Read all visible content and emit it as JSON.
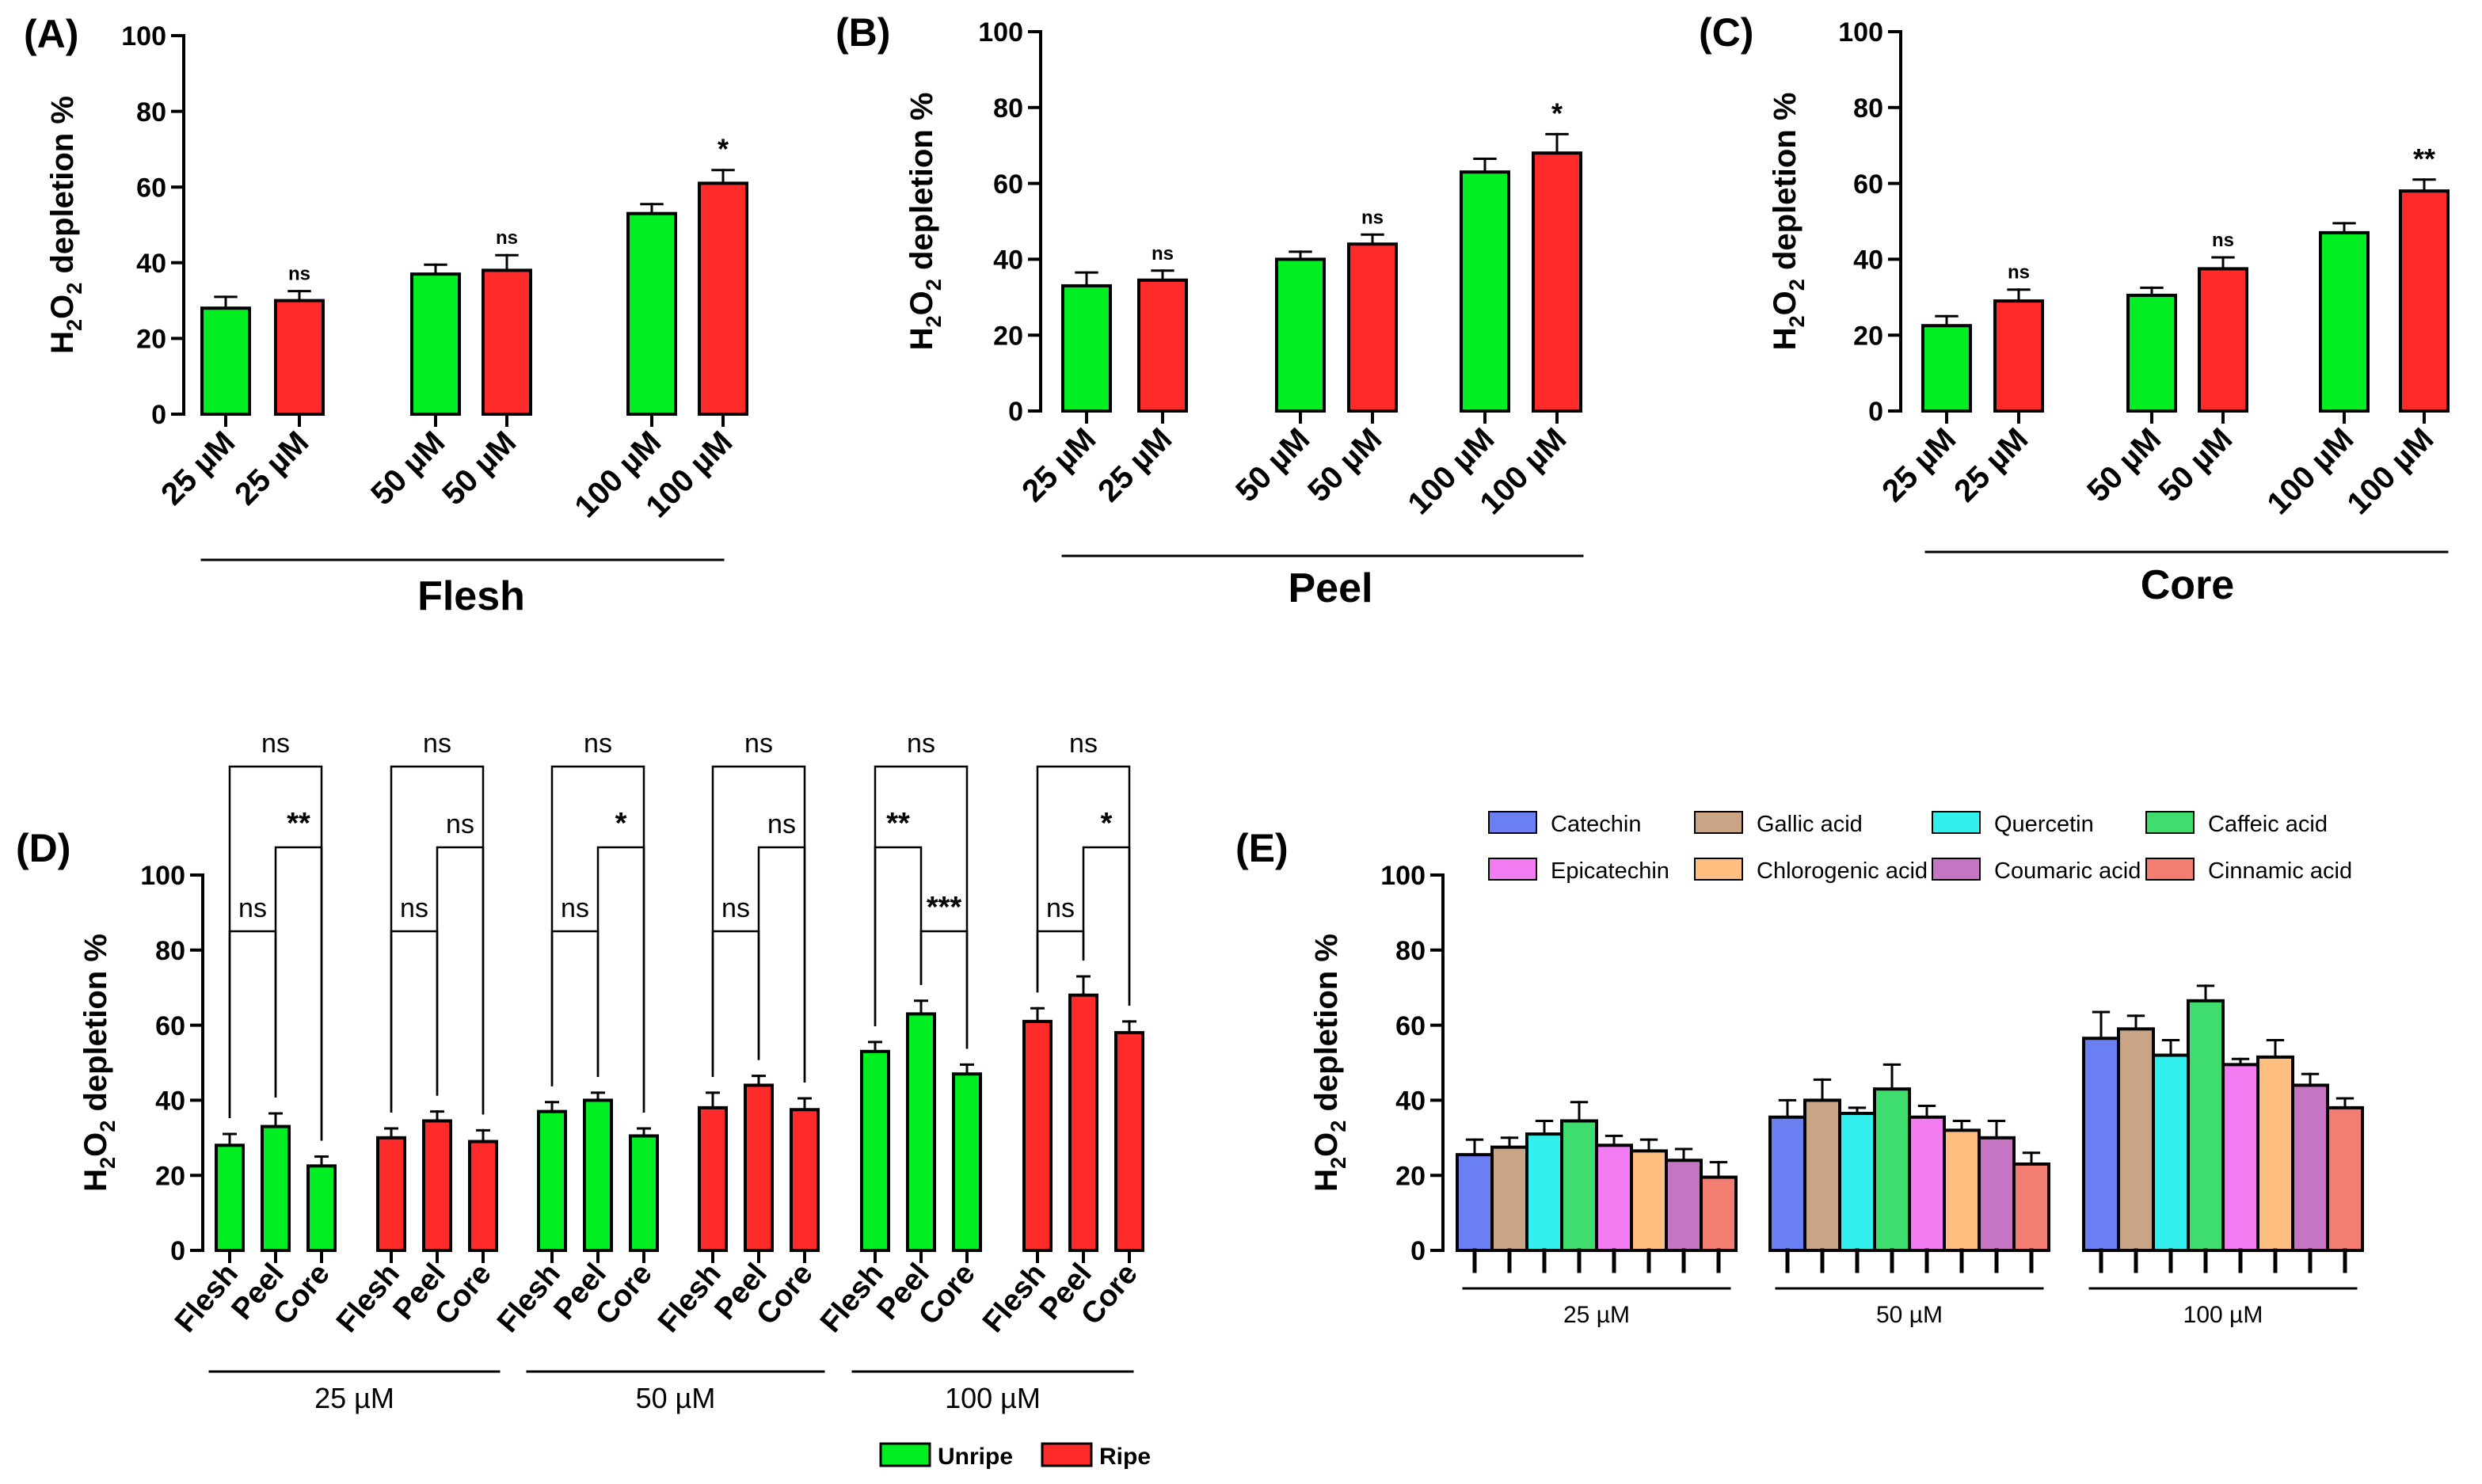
{
  "colors": {
    "unripe": "#00ee22",
    "ripe": "#ff2a2a",
    "outline": "#000000",
    "compounds": [
      "#6a7ff2",
      "#c9a586",
      "#33f0ee",
      "#3fdc6e",
      "#f27cf2",
      "#ffbf80",
      "#c674c4",
      "#f47d72"
    ]
  },
  "chart_data": [
    {
      "panel": "(A)",
      "type": "bar",
      "title": "",
      "group_label": "Flesh",
      "ylabel_parts": [
        "H",
        "2",
        "O",
        "2",
        " depletion %"
      ],
      "ylim": [
        0,
        100
      ],
      "yticks": [
        "0",
        "20",
        "40",
        "60",
        "80",
        "100"
      ],
      "categories": [
        "25 µM",
        "25 µM",
        "50 µM",
        "50 µM",
        "100 µM",
        "100 µM"
      ],
      "groups": [
        "unripe",
        "ripe",
        "unripe",
        "ripe",
        "unripe",
        "ripe"
      ],
      "values": [
        28,
        30,
        37,
        38,
        53,
        61
      ],
      "errors": [
        3,
        2.5,
        2.5,
        4,
        2.5,
        3.5
      ],
      "annotations": [
        "",
        "ns",
        "",
        "ns",
        "",
        "*"
      ]
    },
    {
      "panel": "(B)",
      "type": "bar",
      "title": "",
      "group_label": "Peel",
      "ylabel_parts": [
        "H",
        "2",
        "O",
        "2",
        " depletion %"
      ],
      "ylim": [
        0,
        100
      ],
      "yticks": [
        "0",
        "20",
        "40",
        "60",
        "80",
        "100"
      ],
      "categories": [
        "25 µM",
        "25 µM",
        "50 µM",
        "50 µM",
        "100 µM",
        "100 µM"
      ],
      "groups": [
        "unripe",
        "ripe",
        "unripe",
        "ripe",
        "unripe",
        "ripe"
      ],
      "values": [
        33,
        34.5,
        40,
        44,
        63,
        68
      ],
      "errors": [
        3.5,
        2.5,
        2,
        2.5,
        3.5,
        5
      ],
      "annotations": [
        "",
        "ns",
        "",
        "ns",
        "",
        "*"
      ]
    },
    {
      "panel": "(C)",
      "type": "bar",
      "title": "",
      "group_label": "Core",
      "ylabel_parts": [
        "H",
        "2",
        "O",
        "2",
        " depletion %"
      ],
      "ylim": [
        0,
        100
      ],
      "yticks": [
        "0",
        "20",
        "40",
        "60",
        "80",
        "100"
      ],
      "categories": [
        "25 µM",
        "25 µM",
        "50 µM",
        "50 µM",
        "100 µM",
        "100 µM"
      ],
      "groups": [
        "unripe",
        "ripe",
        "unripe",
        "ripe",
        "unripe",
        "ripe"
      ],
      "values": [
        22.5,
        29,
        30.5,
        37.5,
        47,
        58
      ],
      "errors": [
        2.5,
        3,
        2,
        3,
        2.5,
        3
      ],
      "annotations": [
        "",
        "ns",
        "",
        "ns",
        "",
        "**"
      ]
    },
    {
      "panel": "(D)",
      "type": "bar",
      "title": "",
      "ylabel_parts": [
        "H",
        "2",
        "O",
        "2",
        " depletion %"
      ],
      "ylim": [
        0,
        100
      ],
      "yticks": [
        "0",
        "20",
        "40",
        "60",
        "80",
        "100"
      ],
      "categories": [
        "Flesh",
        "Peel",
        "Core"
      ],
      "group_labels": [
        "25 µM",
        "50 µM",
        "100 µM"
      ],
      "legend": [
        {
          "key": "unripe",
          "label": "Unripe"
        },
        {
          "key": "ripe",
          "label": "Ripe"
        }
      ],
      "sets": [
        {
          "group": "25 µM",
          "ripeness": "unripe",
          "values": [
            28,
            33,
            22.5
          ],
          "errors": [
            3,
            3.5,
            2.5
          ],
          "brackets": {
            "outer": "ns",
            "upper": "**",
            "lower": "ns"
          }
        },
        {
          "group": "25 µM",
          "ripeness": "ripe",
          "values": [
            30,
            34.5,
            29
          ],
          "errors": [
            2.5,
            2.5,
            3
          ],
          "brackets": {
            "outer": "ns",
            "upper": "ns",
            "lower": "ns"
          }
        },
        {
          "group": "50 µM",
          "ripeness": "unripe",
          "values": [
            37,
            40,
            30.5
          ],
          "errors": [
            2.5,
            2,
            2
          ],
          "brackets": {
            "outer": "ns",
            "upper": "*",
            "lower": "ns"
          }
        },
        {
          "group": "50 µM",
          "ripeness": "ripe",
          "values": [
            38,
            44,
            37.5
          ],
          "errors": [
            4,
            2.5,
            3
          ],
          "brackets": {
            "outer": "ns",
            "upper": "ns",
            "lower": "ns"
          }
        },
        {
          "group": "100 µM",
          "ripeness": "unripe",
          "values": [
            53,
            63,
            47
          ],
          "errors": [
            2.5,
            3.5,
            2.5
          ],
          "brackets": {
            "outer": "ns",
            "upper": "**",
            "lower": "***"
          }
        },
        {
          "group": "100 µM",
          "ripeness": "ripe",
          "values": [
            61,
            68,
            58
          ],
          "errors": [
            3.5,
            5,
            3
          ],
          "brackets": {
            "outer": "ns",
            "upper": "*",
            "lower": "ns"
          }
        }
      ]
    },
    {
      "panel": "(E)",
      "type": "bar",
      "title": "",
      "ylabel_parts": [
        "H",
        "2",
        "O",
        "2",
        " depletion %"
      ],
      "ylim": [
        0,
        100
      ],
      "yticks": [
        "0",
        "20",
        "40",
        "60",
        "80",
        "100"
      ],
      "categories": [
        "25 µM",
        "50 µM",
        "100 µM"
      ],
      "series": [
        {
          "name": "Catechin",
          "values": [
            25.5,
            35.5,
            56.5
          ],
          "errors": [
            4,
            4.5,
            7
          ]
        },
        {
          "name": "Gallic acid",
          "values": [
            27.5,
            40,
            59
          ],
          "errors": [
            2.5,
            5.5,
            3.5
          ]
        },
        {
          "name": "Quercetin",
          "values": [
            31,
            36.5,
            52
          ],
          "errors": [
            3.5,
            1.5,
            4
          ]
        },
        {
          "name": "Caffeic acid",
          "values": [
            34.5,
            43,
            66.5
          ],
          "errors": [
            5,
            6.5,
            4
          ]
        },
        {
          "name": "Epicatechin",
          "values": [
            28,
            35.5,
            49.5
          ],
          "errors": [
            2.5,
            3,
            1.5
          ]
        },
        {
          "name": "Chlorogenic acid",
          "values": [
            26.5,
            32,
            51.5
          ],
          "errors": [
            3,
            2.5,
            4.5
          ]
        },
        {
          "name": "Coumaric acid",
          "values": [
            24,
            30,
            44
          ],
          "errors": [
            3,
            4.5,
            3
          ]
        },
        {
          "name": "Cinnamic acid",
          "values": [
            19.5,
            23,
            38
          ],
          "errors": [
            4,
            3,
            2.5
          ]
        }
      ]
    }
  ]
}
